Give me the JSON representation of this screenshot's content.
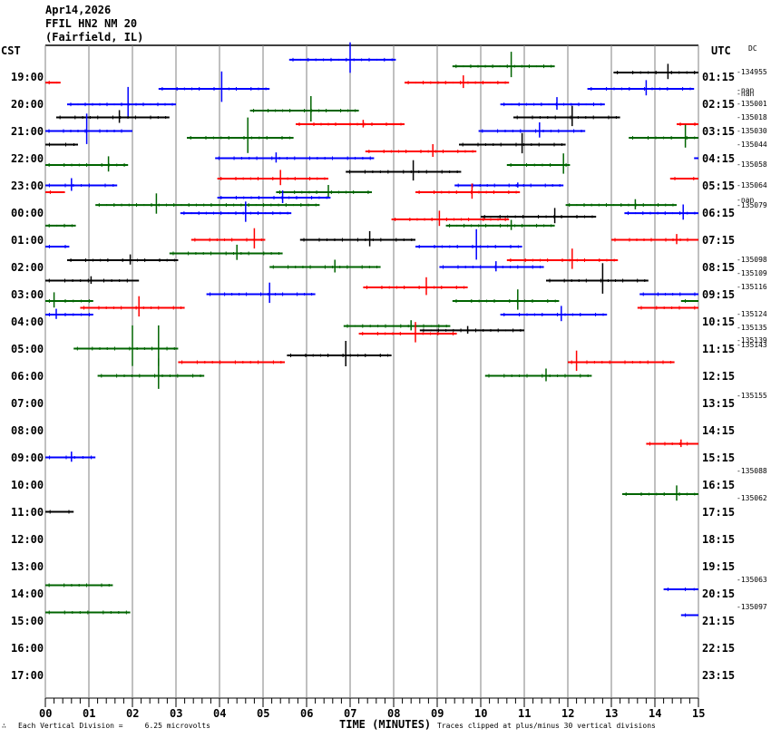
{
  "header": {
    "date": "Apr14,2026",
    "station": "FFIL HN2 NM 20",
    "location": "(Fairfield, IL)"
  },
  "left_axis_title": "CST",
  "right_axis_title": "UTC",
  "dc_title": "DC",
  "footer": {
    "mark": "∴",
    "scale_note": "Each Vertical Division =     6.25 microvolts",
    "x_axis_title": "TIME (MINUTES)",
    "clip_note": "Traces clipped at plus/minus 30 vertical divisions"
  },
  "chart_data": {
    "type": "line",
    "title": "FFIL HN2 NM 20 (Fairfield, IL) helicorder",
    "xlabel": "TIME (MINUTES)",
    "xlim": [
      0,
      15
    ],
    "x_ticks": [
      "00",
      "01",
      "02",
      "03",
      "04",
      "05",
      "06",
      "07",
      "08",
      "09",
      "10",
      "11",
      "12",
      "13",
      "14",
      "15"
    ],
    "cst_labels": [
      "19:00",
      "20:00",
      "21:00",
      "22:00",
      "23:00",
      "00:00",
      "01:00",
      "02:00",
      "03:00",
      "04:00",
      "05:00",
      "06:00",
      "07:00",
      "08:00",
      "09:00",
      "10:00",
      "11:00",
      "12:00",
      "13:00",
      "14:00",
      "15:00",
      "16:00",
      "17:00"
    ],
    "utc_labels": [
      "01:15",
      "02:15",
      "03:15",
      "04:15",
      "05:15",
      "06:15",
      "07:15",
      "08:15",
      "09:15",
      "10:15",
      "11:15",
      "12:15",
      "13:15",
      "14:15",
      "15:15",
      "16:15",
      "17:15",
      "18:15",
      "19:15",
      "20:15",
      "21:15",
      "22:15",
      "23:15"
    ],
    "dc_values": [
      {
        "h": -0.2,
        "text": "-134955"
      },
      {
        "h": 0.45,
        "text": "-nan"
      },
      {
        "h": 0.6,
        "text": "-nan"
      },
      {
        "h": 0.95,
        "text": "-135001"
      },
      {
        "h": 1.45,
        "text": "-135018"
      },
      {
        "h": 1.95,
        "text": "-135030"
      },
      {
        "h": 2.45,
        "text": "-135044"
      },
      {
        "h": 3.2,
        "text": "-135058"
      },
      {
        "h": 3.95,
        "text": "-135064"
      },
      {
        "h": 4.5,
        "text": "-nan"
      },
      {
        "h": 4.7,
        "text": "-135079"
      },
      {
        "h": 6.7,
        "text": "-135098"
      },
      {
        "h": 7.2,
        "text": "-135109"
      },
      {
        "h": 7.7,
        "text": "-135116"
      },
      {
        "h": 8.7,
        "text": "-135124"
      },
      {
        "h": 9.2,
        "text": "-135135"
      },
      {
        "h": 9.65,
        "text": "-135139"
      },
      {
        "h": 9.82,
        "text": "-135143"
      },
      {
        "h": 11.7,
        "text": "-135155"
      },
      {
        "h": 14.45,
        "text": "-135088"
      },
      {
        "h": 15.45,
        "text": "-135062"
      },
      {
        "h": 18.45,
        "text": "-135063"
      },
      {
        "h": 19.45,
        "text": "-135097"
      }
    ],
    "series": [
      {
        "c": "blue",
        "h": -0.67,
        "x0": 5.6,
        "x1": 8.05,
        "ev": 7.0,
        "amp": 12
      },
      {
        "c": "green",
        "h": -0.43,
        "x0": 9.35,
        "x1": 11.7,
        "ev": 10.7,
        "amp": 10
      },
      {
        "c": "black",
        "h": -0.2,
        "x0": 13.05,
        "x1": 15,
        "ev": 14.3,
        "amp": 6
      },
      {
        "c": "red",
        "h": 0.17,
        "x0": 0,
        "x1": 0.35,
        "ev": -1,
        "amp": 0
      },
      {
        "c": "red",
        "h": 0.17,
        "x0": 8.25,
        "x1": 10.65,
        "ev": 9.6,
        "amp": 5
      },
      {
        "c": "blue",
        "h": 0.4,
        "x0": 2.6,
        "x1": 5.15,
        "ev": 4.05,
        "amp": 12
      },
      {
        "c": "blue",
        "h": 0.4,
        "x0": 12.45,
        "x1": 14.9,
        "ev": 13.8,
        "amp": 6
      },
      {
        "c": "blue",
        "h": 0.97,
        "x0": 0.5,
        "x1": 3.0,
        "ev": 1.9,
        "amp": 12
      },
      {
        "c": "blue",
        "h": 0.97,
        "x0": 10.45,
        "x1": 12.85,
        "ev": 11.75,
        "amp": 5
      },
      {
        "c": "green",
        "h": 1.2,
        "x0": 4.7,
        "x1": 7.2,
        "ev": 6.1,
        "amp": 10
      },
      {
        "c": "black",
        "h": 1.45,
        "x0": 0.25,
        "x1": 2.85,
        "ev": 1.7,
        "amp": 5
      },
      {
        "c": "black",
        "h": 1.45,
        "x0": 10.75,
        "x1": 13.2,
        "ev": 12.1,
        "amp": 8
      },
      {
        "c": "red",
        "h": 1.7,
        "x0": 5.75,
        "x1": 8.25,
        "ev": 7.3,
        "amp": 3
      },
      {
        "c": "red",
        "h": 1.7,
        "x0": 14.5,
        "x1": 15,
        "ev": -1,
        "amp": 0
      },
      {
        "c": "blue",
        "h": 1.95,
        "x0": 0,
        "x1": 2.0,
        "ev": 0.95,
        "amp": 12
      },
      {
        "c": "blue",
        "h": 1.95,
        "x0": 9.95,
        "x1": 12.4,
        "ev": 11.35,
        "amp": 6
      },
      {
        "c": "green",
        "h": 2.2,
        "x0": 3.25,
        "x1": 5.7,
        "ev": 4.65,
        "amp": 14
      },
      {
        "c": "green",
        "h": 2.2,
        "x0": 13.4,
        "x1": 15,
        "ev": 14.7,
        "amp": 9
      },
      {
        "c": "black",
        "h": 2.45,
        "x0": 0,
        "x1": 0.75,
        "ev": -1,
        "amp": 0
      },
      {
        "c": "black",
        "h": 2.45,
        "x0": 9.5,
        "x1": 11.95,
        "ev": 10.95,
        "amp": 8
      },
      {
        "c": "red",
        "h": 2.7,
        "x0": 7.35,
        "x1": 9.9,
        "ev": 8.9,
        "amp": 5
      },
      {
        "c": "blue",
        "h": 2.95,
        "x0": 3.9,
        "x1": 7.55,
        "ev": 5.3,
        "amp": 4
      },
      {
        "c": "blue",
        "h": 2.95,
        "x0": 14.9,
        "x1": 15,
        "ev": -1,
        "amp": 0
      },
      {
        "c": "green",
        "h": 3.2,
        "x0": 0,
        "x1": 1.9,
        "ev": 1.45,
        "amp": 6
      },
      {
        "c": "green",
        "h": 3.2,
        "x0": 10.6,
        "x1": 12.05,
        "ev": 11.9,
        "amp": 8
      },
      {
        "c": "black",
        "h": 3.45,
        "x0": 6.9,
        "x1": 9.55,
        "ev": 8.45,
        "amp": 8
      },
      {
        "c": "red",
        "h": 3.7,
        "x0": 3.95,
        "x1": 6.5,
        "ev": 5.4,
        "amp": 6
      },
      {
        "c": "red",
        "h": 3.7,
        "x0": 14.35,
        "x1": 15,
        "ev": -1,
        "amp": 0
      },
      {
        "c": "blue",
        "h": 3.95,
        "x0": 0,
        "x1": 1.65,
        "ev": 0.6,
        "amp": 5
      },
      {
        "c": "blue",
        "h": 3.95,
        "x0": 9.4,
        "x1": 11.9,
        "ev": 10.85,
        "amp": 2
      },
      {
        "c": "green",
        "h": 4.2,
        "x0": 5.3,
        "x1": 7.5,
        "ev": 6.5,
        "amp": 5
      },
      {
        "c": "red",
        "h": 4.2,
        "x0": 0,
        "x1": 0.45,
        "ev": -1,
        "amp": 0
      },
      {
        "c": "red",
        "h": 4.2,
        "x0": 8.5,
        "x1": 10.9,
        "ev": 9.8,
        "amp": 6
      },
      {
        "c": "blue",
        "h": 4.4,
        "x0": 3.95,
        "x1": 6.55,
        "ev": 5.45,
        "amp": 5
      },
      {
        "c": "green",
        "h": 4.67,
        "x0": 1.15,
        "x1": 6.3,
        "ev": 2.55,
        "amp": 8
      },
      {
        "c": "green",
        "h": 4.67,
        "x0": 11.95,
        "x1": 14.5,
        "ev": 13.55,
        "amp": 4
      },
      {
        "c": "black",
        "h": 5.1,
        "x0": 10.0,
        "x1": 12.65,
        "ev": 11.7,
        "amp": 6
      },
      {
        "c": "blue",
        "h": 4.97,
        "x0": 3.1,
        "x1": 5.65,
        "ev": 4.6,
        "amp": 8
      },
      {
        "c": "blue",
        "h": 4.97,
        "x0": 13.3,
        "x1": 15,
        "ev": 14.65,
        "amp": 6
      },
      {
        "c": "red",
        "h": 5.2,
        "x0": 7.95,
        "x1": 10.65,
        "ev": 9.05,
        "amp": 6
      },
      {
        "c": "green",
        "h": 5.43,
        "x0": 0,
        "x1": 0.7,
        "ev": -1,
        "amp": 0
      },
      {
        "c": "green",
        "h": 5.43,
        "x0": 9.2,
        "x1": 11.7,
        "ev": 10.7,
        "amp": 4
      },
      {
        "c": "black",
        "h": 5.95,
        "x0": 5.85,
        "x1": 8.5,
        "ev": 7.45,
        "amp": 6
      },
      {
        "c": "red",
        "h": 5.95,
        "x0": 3.35,
        "x1": 5.05,
        "ev": 4.8,
        "amp": 8
      },
      {
        "c": "red",
        "h": 5.95,
        "x0": 13.0,
        "x1": 15,
        "ev": 14.5,
        "amp": 4
      },
      {
        "c": "blue",
        "h": 6.2,
        "x0": 0,
        "x1": 0.55,
        "ev": -1,
        "amp": 0
      },
      {
        "c": "blue",
        "h": 6.2,
        "x0": 8.5,
        "x1": 10.95,
        "ev": 9.9,
        "amp": 12
      },
      {
        "c": "green",
        "h": 6.45,
        "x0": 2.85,
        "x1": 5.45,
        "ev": 4.4,
        "amp": 6
      },
      {
        "c": "black",
        "h": 6.7,
        "x0": 0.5,
        "x1": 3.05,
        "ev": 1.95,
        "amp": 4
      },
      {
        "c": "red",
        "h": 6.7,
        "x0": 10.6,
        "x1": 13.15,
        "ev": 12.1,
        "amp": 8
      },
      {
        "c": "blue",
        "h": 6.95,
        "x0": 9.05,
        "x1": 11.45,
        "ev": 10.35,
        "amp": 4
      },
      {
        "c": "green",
        "h": 6.95,
        "x0": 5.15,
        "x1": 7.7,
        "ev": 6.65,
        "amp": 5
      },
      {
        "c": "black",
        "h": 7.45,
        "x0": 0,
        "x1": 2.15,
        "ev": 1.05,
        "amp": 3
      },
      {
        "c": "black",
        "h": 7.45,
        "x0": 11.5,
        "x1": 13.85,
        "ev": 12.8,
        "amp": 12
      },
      {
        "c": "red",
        "h": 7.7,
        "x0": 7.3,
        "x1": 9.7,
        "ev": 8.75,
        "amp": 7
      },
      {
        "c": "blue",
        "h": 7.95,
        "x0": 3.7,
        "x1": 6.2,
        "ev": 5.15,
        "amp": 8
      },
      {
        "c": "blue",
        "h": 7.95,
        "x0": 13.65,
        "x1": 15,
        "ev": -1,
        "amp": 0
      },
      {
        "c": "green",
        "h": 8.2,
        "x0": 0,
        "x1": 1.1,
        "ev": 0.2,
        "amp": 6
      },
      {
        "c": "green",
        "h": 8.2,
        "x0": 9.35,
        "x1": 11.8,
        "ev": 10.85,
        "amp": 8
      },
      {
        "c": "green",
        "h": 8.2,
        "x0": 14.6,
        "x1": 15,
        "ev": -1,
        "amp": 0
      },
      {
        "c": "red",
        "h": 8.45,
        "x0": 0.8,
        "x1": 3.2,
        "ev": 2.15,
        "amp": 8
      },
      {
        "c": "red",
        "h": 8.45,
        "x0": 13.6,
        "x1": 15,
        "ev": -1,
        "amp": 0
      },
      {
        "c": "blue",
        "h": 8.7,
        "x0": 0,
        "x1": 1.1,
        "ev": 0.25,
        "amp": 4
      },
      {
        "c": "blue",
        "h": 8.7,
        "x0": 10.45,
        "x1": 12.9,
        "ev": 11.85,
        "amp": 6
      },
      {
        "c": "green",
        "h": 9.12,
        "x0": 6.85,
        "x1": 9.3,
        "ev": 8.4,
        "amp": 4
      },
      {
        "c": "black",
        "h": 9.28,
        "x0": 8.6,
        "x1": 11.0,
        "ev": 9.7,
        "amp": 3
      },
      {
        "c": "red",
        "h": 9.4,
        "x0": 7.2,
        "x1": 9.45,
        "ev": 8.5,
        "amp": 8
      },
      {
        "c": "green",
        "h": 9.95,
        "x0": 0.65,
        "x1": 3.05,
        "ev": 2.0,
        "amp": 16
      },
      {
        "c": "green",
        "h": 9.95,
        "x0": -1,
        "x1": -1,
        "ev": 2.6,
        "amp": 16
      },
      {
        "c": "black",
        "h": 10.2,
        "x0": 5.55,
        "x1": 7.95,
        "ev": 6.9,
        "amp": 10
      },
      {
        "c": "red",
        "h": 10.45,
        "x0": 3.05,
        "x1": 5.5,
        "ev": -1,
        "amp": 0
      },
      {
        "c": "red",
        "h": 10.45,
        "x0": 12.0,
        "x1": 14.45,
        "ev": 12.2,
        "amp": 8
      },
      {
        "c": "green",
        "h": 10.95,
        "x0": 1.2,
        "x1": 3.65,
        "ev": 2.6,
        "amp": 12
      },
      {
        "c": "green",
        "h": 10.95,
        "x0": 10.1,
        "x1": 12.55,
        "ev": 11.5,
        "amp": 5
      },
      {
        "c": "blue",
        "h": 13.95,
        "x0": 0,
        "x1": 1.15,
        "ev": 0.6,
        "amp": 4
      },
      {
        "c": "red",
        "h": 13.45,
        "x0": 13.8,
        "x1": 15,
        "ev": 14.6,
        "amp": 3
      },
      {
        "c": "black",
        "h": 15.95,
        "x0": 0,
        "x1": 0.65,
        "ev": -1,
        "amp": 0
      },
      {
        "c": "green",
        "h": 15.3,
        "x0": 13.25,
        "x1": 15,
        "ev": 14.5,
        "amp": 6
      },
      {
        "c": "blue",
        "h": 18.8,
        "x0": 14.2,
        "x1": 15,
        "ev": -1,
        "amp": 0
      },
      {
        "c": "green",
        "h": 18.65,
        "x0": 0,
        "x1": 1.55,
        "ev": -1,
        "amp": 0
      },
      {
        "c": "blue",
        "h": 19.75,
        "x0": 14.6,
        "x1": 15,
        "ev": -1,
        "amp": 0
      },
      {
        "c": "green",
        "h": 19.65,
        "x0": 0,
        "x1": 1.95,
        "ev": -1,
        "amp": 0
      }
    ],
    "colors": {
      "black": "#000000",
      "red": "#ff0000",
      "blue": "#0000ff",
      "green": "#006400",
      "grid": "#808080"
    }
  }
}
